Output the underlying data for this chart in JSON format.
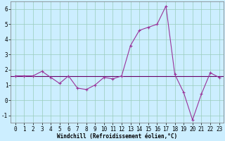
{
  "xlabel": "Windchill (Refroidissement éolien,°C)",
  "bg_color": "#cceeff",
  "grid_color": "#99ccbb",
  "line_color": "#993399",
  "flat_line_color": "#660066",
  "xlim": [
    -0.5,
    23.5
  ],
  "ylim": [
    -1.5,
    6.5
  ],
  "yticks": [
    -1,
    0,
    1,
    2,
    3,
    4,
    5,
    6
  ],
  "xticks": [
    0,
    1,
    2,
    3,
    4,
    5,
    6,
    7,
    8,
    9,
    10,
    11,
    12,
    13,
    14,
    15,
    16,
    17,
    18,
    19,
    20,
    21,
    22,
    23
  ],
  "flat_line_y": 1.6,
  "curve_x": [
    0,
    1,
    2,
    3,
    4,
    5,
    6,
    7,
    8,
    9,
    10,
    11,
    12,
    13,
    14,
    15,
    16,
    17,
    18,
    19,
    20,
    21,
    22,
    23
  ],
  "curve_y": [
    1.6,
    1.6,
    1.6,
    1.9,
    1.5,
    1.1,
    1.6,
    0.8,
    0.7,
    1.0,
    1.5,
    1.4,
    1.6,
    3.6,
    4.6,
    4.8,
    5.0,
    6.2,
    1.7,
    0.5,
    -1.3,
    0.4,
    1.8,
    1.5
  ],
  "xlabel_fontsize": 5.5,
  "tick_fontsize": 5.5,
  "line_width": 0.8,
  "marker_size": 2.5
}
